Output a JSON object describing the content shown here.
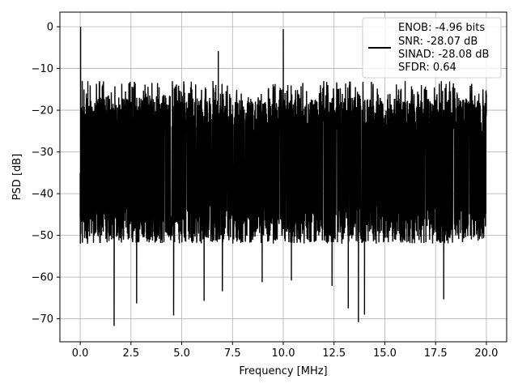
{
  "chart_data": {
    "type": "line",
    "title": "",
    "xlabel": "Frequency [MHz]",
    "ylabel": "PSD [dB]",
    "xlim": [
      -1.0,
      21.0
    ],
    "ylim": [
      -75.5,
      3.5
    ],
    "x_ticks": [
      0.0,
      2.5,
      5.0,
      7.5,
      10.0,
      12.5,
      15.0,
      17.5,
      20.0
    ],
    "x_tick_labels": [
      "0.0",
      "2.5",
      "5.0",
      "7.5",
      "10.0",
      "12.5",
      "15.0",
      "17.5",
      "20.0"
    ],
    "y_ticks": [
      0,
      -10,
      -20,
      -30,
      -40,
      -50,
      -60,
      -70
    ],
    "y_tick_labels": [
      "0",
      "−10",
      "−20",
      "−30",
      "−40",
      "−50",
      "−60",
      "−70"
    ],
    "grid": true,
    "legend_position": "top-right",
    "series": [
      {
        "name": "ENOB: -4.96 bits\nSNR: -28.07 dB\nSINAD: -28.08 dB\nSFDR: 0.64",
        "legend_lines": [
          "ENOB: -4.96 bits",
          "SNR: -28.07 dB",
          "SINAD: -28.08 dB",
          "SFDR: 0.64"
        ],
        "color": "#000000",
        "description_points": [
          [
            0.0,
            -35
          ],
          [
            0.02,
            0.0
          ],
          [
            0.05,
            -20
          ],
          [
            0.1,
            -13
          ],
          [
            0.3,
            -16
          ],
          [
            1.0,
            -17
          ],
          [
            1.67,
            -71.7
          ],
          [
            2.5,
            -18
          ],
          [
            2.78,
            -66.3
          ],
          [
            4.6,
            -69.2
          ],
          [
            5.5,
            -15
          ],
          [
            6.1,
            -65.7
          ],
          [
            6.8,
            -5.8
          ],
          [
            7.0,
            -63.4
          ],
          [
            8.96,
            -61.2
          ],
          [
            10.0,
            -0.6
          ],
          [
            10.4,
            -60.8
          ],
          [
            12.4,
            -62.1
          ],
          [
            13.2,
            -67.5
          ],
          [
            13.7,
            -70.8
          ],
          [
            14.0,
            -69.0
          ],
          [
            16.0,
            -13
          ],
          [
            17.9,
            -65.3
          ],
          [
            20.0,
            -16
          ]
        ],
        "noise_band": {
          "upper_db": [
            -17,
            -12
          ],
          "lower_db": [
            -53,
            -42
          ]
        }
      }
    ]
  }
}
